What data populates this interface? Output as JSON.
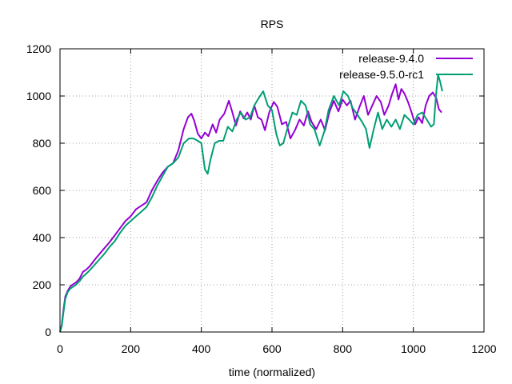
{
  "chart_data": {
    "type": "line",
    "title": "RPS",
    "xlabel": "time (normalized)",
    "ylabel": "",
    "xlim": [
      0,
      1200
    ],
    "ylim": [
      0,
      1200
    ],
    "xticks": [
      0,
      200,
      400,
      600,
      800,
      1000,
      1200
    ],
    "yticks": [
      0,
      200,
      400,
      600,
      800,
      1000,
      1200
    ],
    "grid": true,
    "legend_position": "top-right",
    "series": [
      {
        "name": "release-9.4.0",
        "color": "#9400d3",
        "points": [
          [
            0,
            0
          ],
          [
            5,
            30
          ],
          [
            10,
            95
          ],
          [
            15,
            150
          ],
          [
            22,
            175
          ],
          [
            30,
            195
          ],
          [
            45,
            210
          ],
          [
            55,
            225
          ],
          [
            65,
            255
          ],
          [
            75,
            265
          ],
          [
            85,
            280
          ],
          [
            100,
            310
          ],
          [
            120,
            345
          ],
          [
            140,
            380
          ],
          [
            155,
            410
          ],
          [
            170,
            440
          ],
          [
            185,
            470
          ],
          [
            200,
            490
          ],
          [
            215,
            520
          ],
          [
            230,
            535
          ],
          [
            245,
            550
          ],
          [
            260,
            600
          ],
          [
            275,
            640
          ],
          [
            290,
            675
          ],
          [
            305,
            700
          ],
          [
            320,
            715
          ],
          [
            335,
            770
          ],
          [
            350,
            860
          ],
          [
            362,
            910
          ],
          [
            372,
            925
          ],
          [
            380,
            895
          ],
          [
            390,
            840
          ],
          [
            400,
            820
          ],
          [
            410,
            845
          ],
          [
            420,
            830
          ],
          [
            432,
            880
          ],
          [
            442,
            845
          ],
          [
            452,
            900
          ],
          [
            465,
            925
          ],
          [
            478,
            980
          ],
          [
            488,
            930
          ],
          [
            498,
            875
          ],
          [
            510,
            935
          ],
          [
            520,
            905
          ],
          [
            530,
            930
          ],
          [
            540,
            900
          ],
          [
            550,
            960
          ],
          [
            560,
            910
          ],
          [
            570,
            900
          ],
          [
            580,
            855
          ],
          [
            592,
            930
          ],
          [
            605,
            975
          ],
          [
            615,
            955
          ],
          [
            628,
            880
          ],
          [
            640,
            890
          ],
          [
            652,
            820
          ],
          [
            665,
            855
          ],
          [
            678,
            900
          ],
          [
            690,
            875
          ],
          [
            702,
            935
          ],
          [
            712,
            890
          ],
          [
            725,
            860
          ],
          [
            738,
            900
          ],
          [
            750,
            855
          ],
          [
            762,
            930
          ],
          [
            775,
            980
          ],
          [
            788,
            935
          ],
          [
            800,
            985
          ],
          [
            812,
            960
          ],
          [
            822,
            980
          ],
          [
            835,
            900
          ],
          [
            848,
            955
          ],
          [
            860,
            1000
          ],
          [
            872,
            920
          ],
          [
            884,
            960
          ],
          [
            896,
            1000
          ],
          [
            908,
            975
          ],
          [
            918,
            920
          ],
          [
            930,
            960
          ],
          [
            940,
            1010
          ],
          [
            950,
            1050
          ],
          [
            958,
            985
          ],
          [
            966,
            1030
          ],
          [
            975,
            1010
          ],
          [
            985,
            975
          ],
          [
            995,
            930
          ],
          [
            1005,
            880
          ],
          [
            1015,
            910
          ],
          [
            1025,
            885
          ],
          [
            1035,
            960
          ],
          [
            1045,
            1000
          ],
          [
            1055,
            1015
          ],
          [
            1065,
            990
          ],
          [
            1072,
            945
          ],
          [
            1080,
            930
          ]
        ]
      },
      {
        "name": "release-9.5.0-rc1",
        "color": "#009e73",
        "points": [
          [
            0,
            0
          ],
          [
            5,
            25
          ],
          [
            10,
            85
          ],
          [
            15,
            140
          ],
          [
            22,
            170
          ],
          [
            30,
            185
          ],
          [
            45,
            200
          ],
          [
            55,
            215
          ],
          [
            65,
            235
          ],
          [
            80,
            255
          ],
          [
            95,
            280
          ],
          [
            110,
            305
          ],
          [
            125,
            330
          ],
          [
            140,
            360
          ],
          [
            155,
            385
          ],
          [
            170,
            420
          ],
          [
            185,
            450
          ],
          [
            200,
            470
          ],
          [
            215,
            490
          ],
          [
            230,
            510
          ],
          [
            245,
            530
          ],
          [
            260,
            570
          ],
          [
            275,
            620
          ],
          [
            290,
            660
          ],
          [
            305,
            700
          ],
          [
            320,
            715
          ],
          [
            335,
            740
          ],
          [
            350,
            800
          ],
          [
            365,
            820
          ],
          [
            378,
            820
          ],
          [
            390,
            810
          ],
          [
            400,
            800
          ],
          [
            410,
            690
          ],
          [
            418,
            670
          ],
          [
            426,
            730
          ],
          [
            438,
            800
          ],
          [
            450,
            810
          ],
          [
            462,
            810
          ],
          [
            475,
            870
          ],
          [
            488,
            850
          ],
          [
            500,
            900
          ],
          [
            512,
            930
          ],
          [
            525,
            900
          ],
          [
            538,
            910
          ],
          [
            550,
            960
          ],
          [
            562,
            990
          ],
          [
            575,
            1020
          ],
          [
            588,
            960
          ],
          [
            600,
            940
          ],
          [
            612,
            840
          ],
          [
            622,
            790
          ],
          [
            632,
            800
          ],
          [
            645,
            870
          ],
          [
            658,
            930
          ],
          [
            670,
            920
          ],
          [
            682,
            980
          ],
          [
            695,
            960
          ],
          [
            708,
            880
          ],
          [
            720,
            860
          ],
          [
            735,
            790
          ],
          [
            748,
            850
          ],
          [
            760,
            940
          ],
          [
            775,
            1000
          ],
          [
            790,
            960
          ],
          [
            802,
            1020
          ],
          [
            815,
            1000
          ],
          [
            828,
            950
          ],
          [
            842,
            920
          ],
          [
            855,
            890
          ],
          [
            866,
            860
          ],
          [
            876,
            780
          ],
          [
            888,
            860
          ],
          [
            900,
            930
          ],
          [
            912,
            860
          ],
          [
            925,
            900
          ],
          [
            938,
            870
          ],
          [
            950,
            900
          ],
          [
            962,
            860
          ],
          [
            975,
            920
          ],
          [
            988,
            900
          ],
          [
            1000,
            880
          ],
          [
            1012,
            920
          ],
          [
            1025,
            930
          ],
          [
            1038,
            900
          ],
          [
            1050,
            870
          ],
          [
            1058,
            880
          ],
          [
            1064,
            1000
          ],
          [
            1070,
            1090
          ],
          [
            1076,
            1060
          ],
          [
            1082,
            1020
          ]
        ]
      }
    ]
  }
}
